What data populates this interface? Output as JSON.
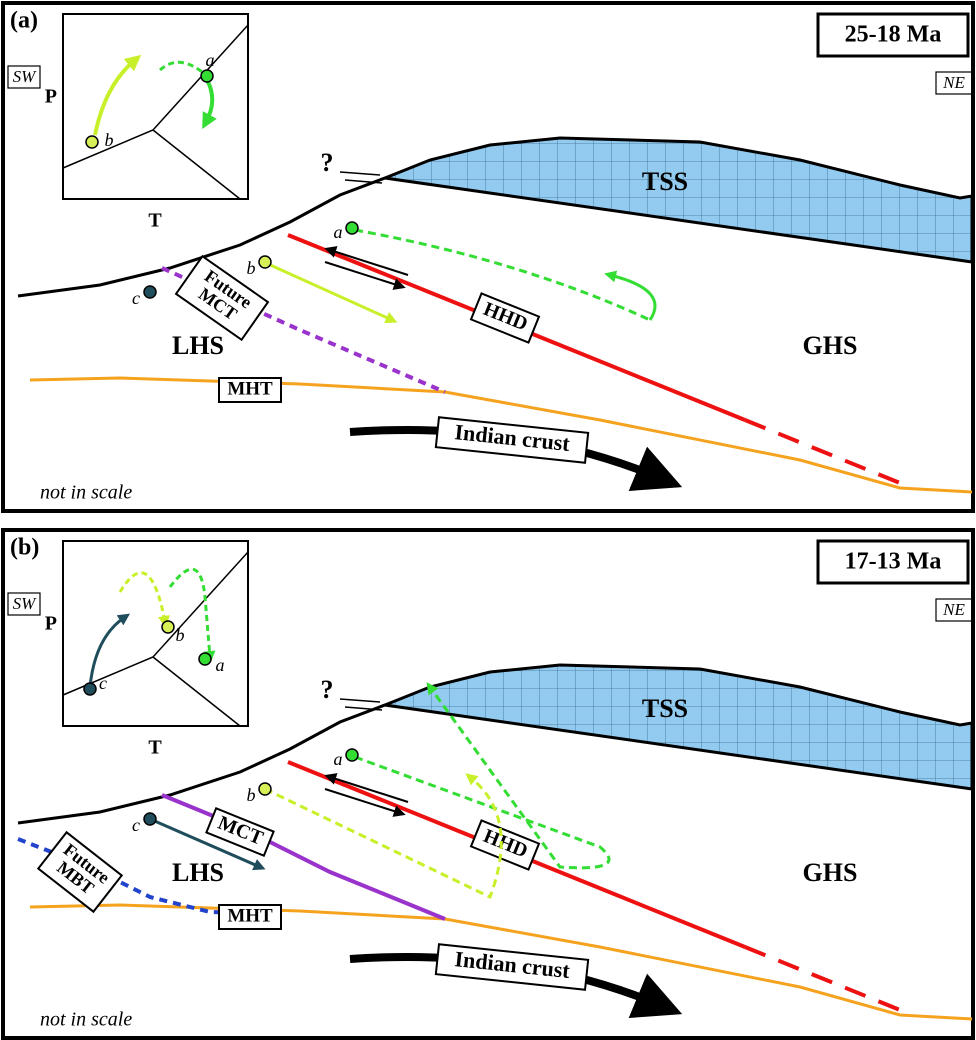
{
  "panels": [
    {
      "label": "(a)",
      "age": "25-18 Ma",
      "sw": "SW",
      "ne": "NE",
      "inset": {
        "p": "P",
        "t": "T",
        "points": [
          "a",
          "b"
        ]
      },
      "query": "?",
      "units": [
        "TSS",
        "LHS",
        "GHS"
      ],
      "structures": {
        "future_fault": [
          "Future",
          "MCT"
        ],
        "hhd": "HHD",
        "mht": "MHT",
        "crust": "Indian crust"
      },
      "points": [
        "a",
        "b",
        "c"
      ],
      "note": "not in scale"
    },
    {
      "label": "(b)",
      "age": "17-13 Ma",
      "sw": "SW",
      "ne": "NE",
      "inset": {
        "p": "P",
        "t": "T",
        "points": [
          "b",
          "a",
          "c"
        ]
      },
      "query": "?",
      "units": [
        "TSS",
        "LHS",
        "GHS"
      ],
      "structures": {
        "future_fault": [
          "Future",
          "MBT"
        ],
        "mct": "MCT",
        "hhd": "HHD",
        "mht": "MHT",
        "crust": "Indian crust"
      },
      "points": [
        "a",
        "b",
        "c"
      ],
      "note": "not in scale"
    }
  ]
}
